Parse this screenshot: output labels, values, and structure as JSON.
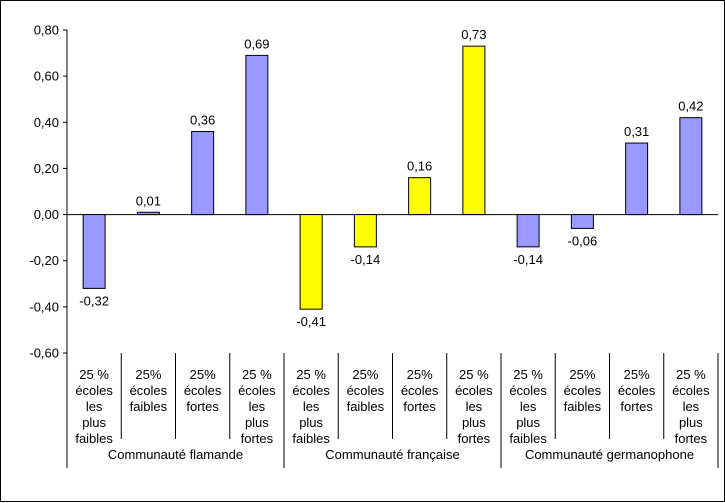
{
  "chart_data": {
    "type": "bar",
    "ylim": [
      -0.6,
      0.8
    ],
    "yticks": [
      "0,80",
      "0,60",
      "0,40",
      "0,20",
      "0,00",
      "-0,20",
      "-0,40",
      "-0,60"
    ],
    "ytick_values": [
      0.8,
      0.6,
      0.4,
      0.2,
      0.0,
      -0.2,
      -0.4,
      -0.6
    ],
    "grid": false,
    "colors": {
      "purple": "#9999FF",
      "yellow": "#FFFF00"
    },
    "categories": [
      [
        "25 %",
        "écoles",
        "les",
        "plus",
        "faibles"
      ],
      [
        "25%",
        "écoles",
        "faibles"
      ],
      [
        "25%",
        "écoles",
        "fortes"
      ],
      [
        "25 %",
        "écoles",
        "les",
        "plus",
        "fortes"
      ],
      [
        "25 %",
        "écoles",
        "les",
        "plus",
        "faibles"
      ],
      [
        "25%",
        "écoles",
        "faibles"
      ],
      [
        "25%",
        "écoles",
        "fortes"
      ],
      [
        "25 %",
        "écoles",
        "les",
        "plus",
        "fortes"
      ],
      [
        "25 %",
        "écoles",
        "les",
        "plus",
        "faibles"
      ],
      [
        "25%",
        "écoles",
        "faibles"
      ],
      [
        "25%",
        "écoles",
        "fortes"
      ],
      [
        "25 %",
        "écoles",
        "les",
        "plus",
        "fortes"
      ]
    ],
    "groups": [
      "Communauté flamande",
      "Communauté française",
      "Communauté germanophone"
    ],
    "values": [
      -0.32,
      0.01,
      0.36,
      0.69,
      -0.41,
      -0.14,
      0.16,
      0.73,
      -0.14,
      -0.06,
      0.31,
      0.42
    ],
    "value_labels": [
      "-0,32",
      "0,01",
      "0,36",
      "0,69",
      "-0,41",
      "-0,14",
      "0,16",
      "0,73",
      "-0,14",
      "-0,06",
      "0,31",
      "0,42"
    ],
    "bar_colors": [
      "purple",
      "purple",
      "purple",
      "purple",
      "yellow",
      "yellow",
      "yellow",
      "yellow",
      "purple",
      "purple",
      "purple",
      "purple"
    ]
  }
}
